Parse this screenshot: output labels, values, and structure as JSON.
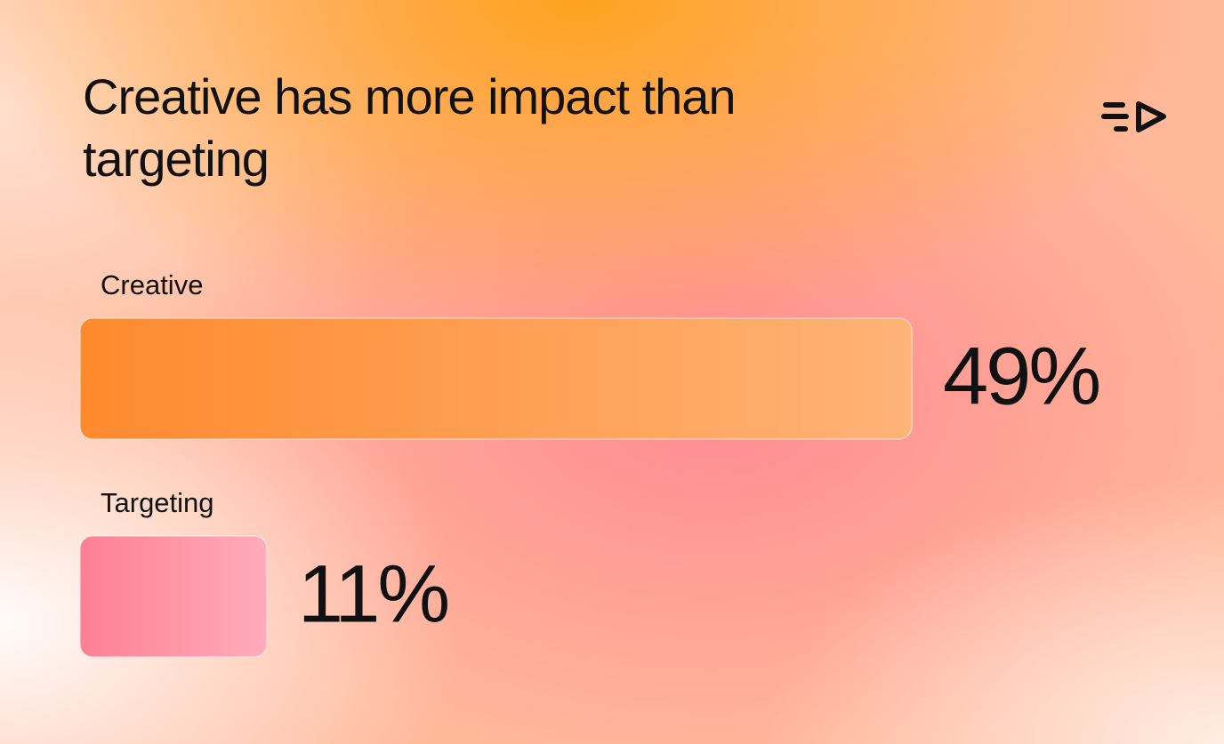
{
  "chart_data": {
    "type": "hbar",
    "title": "Creative has more impact than targeting",
    "categories": [
      "Creative",
      "Targeting"
    ],
    "values": [
      49,
      11
    ],
    "value_labels": [
      "49%",
      "11%"
    ],
    "colors": [
      "#ff8a2e",
      "#ff7f95"
    ]
  }
}
